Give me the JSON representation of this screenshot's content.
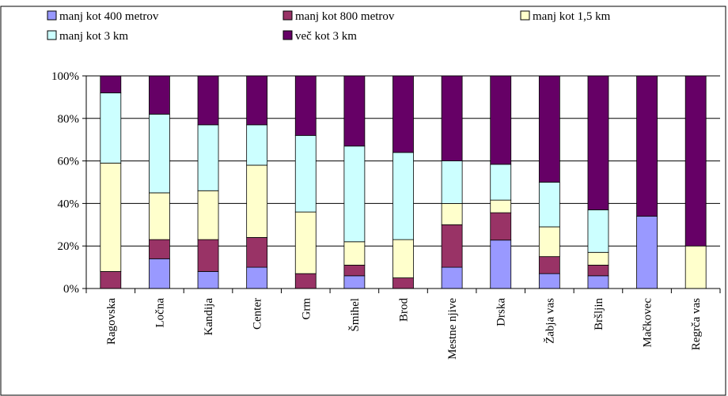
{
  "chart_data": {
    "type": "bar",
    "stacked": true,
    "percent_stacked": true,
    "categories": [
      "Ragovska",
      "Ločna",
      "Kandija",
      "Center",
      "Grm",
      "Šmihel",
      "Brod",
      "Mestne njive",
      "Drska",
      "Žabja vas",
      "Bršljin",
      "Mačkovec",
      "Regrča vas"
    ],
    "series": [
      {
        "name": "manj kot 400 metrov",
        "color": "#9999ff",
        "values": [
          0,
          14,
          8,
          10,
          0,
          6,
          0,
          10,
          23,
          7,
          6,
          34,
          0
        ]
      },
      {
        "name": "manj kot 800 metrov",
        "color": "#993366",
        "values": [
          8,
          9,
          15,
          14,
          7,
          5,
          5,
          20,
          13,
          8,
          5,
          0,
          0
        ]
      },
      {
        "name": "manj kot 1,5 km",
        "color": "#ffffcc",
        "values": [
          51,
          22,
          23,
          34,
          29,
          11,
          18,
          10,
          6,
          14,
          6,
          0,
          20
        ]
      },
      {
        "name": "manj kot 3 km",
        "color": "#ccffff",
        "values": [
          33,
          37,
          31,
          19,
          36,
          45,
          41,
          20,
          17,
          21,
          20,
          0,
          0
        ]
      },
      {
        "name": "več kot 3 km",
        "color": "#660066",
        "values": [
          8,
          18,
          23,
          23,
          28,
          33,
          36,
          40,
          42,
          50,
          63,
          66,
          80
        ]
      }
    ],
    "y_ticks": [
      "0%",
      "20%",
      "40%",
      "60%",
      "80%",
      "100%"
    ],
    "ylim": [
      0,
      100
    ],
    "grid": true,
    "legend_position": "top"
  }
}
